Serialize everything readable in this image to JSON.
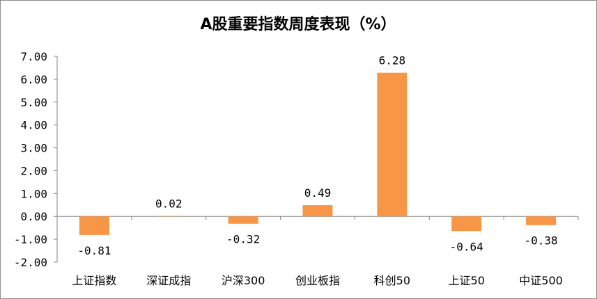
{
  "chart_data": {
    "type": "bar",
    "title": "A股重要指数周度表现（%）",
    "categories": [
      "上证指数",
      "深证成指",
      "沪深300",
      "创业板指",
      "科创50",
      "上证50",
      "中证500"
    ],
    "values": [
      -0.81,
      0.02,
      -0.32,
      0.49,
      6.28,
      -0.64,
      -0.38
    ],
    "data_labels": [
      "-0.81",
      "0.02",
      "-0.32",
      "0.49",
      "6.28",
      "-0.64",
      "-0.38"
    ],
    "ylim": [
      -2.0,
      7.0
    ],
    "yticks": [
      "-2.00",
      "-1.00",
      "0.00",
      "1.00",
      "2.00",
      "3.00",
      "4.00",
      "5.00",
      "6.00",
      "7.00"
    ],
    "ytick_values": [
      -2,
      -1,
      0,
      1,
      2,
      3,
      4,
      5,
      6,
      7
    ],
    "bar_color": "#F79646",
    "grid": false,
    "legend": "none"
  }
}
